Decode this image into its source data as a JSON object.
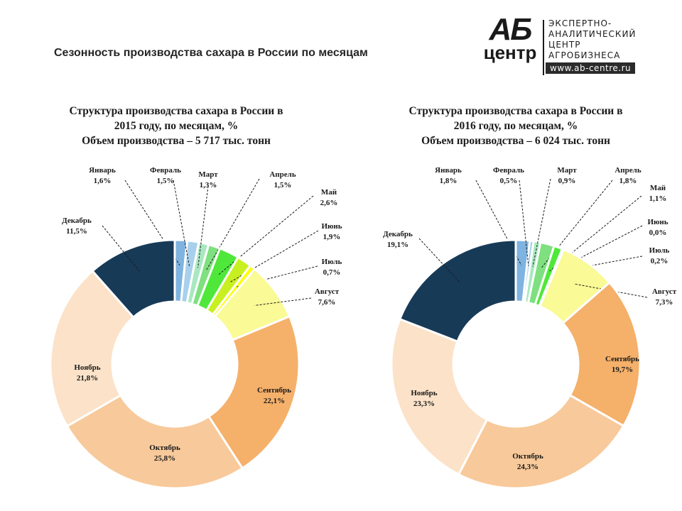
{
  "page": {
    "title": "Сезонность производства сахара в России по месяцам"
  },
  "logo": {
    "mark_top": "АБ",
    "mark_bottom": "центр",
    "lines": [
      "ЭКСПЕРТНО-",
      "АНАЛИТИЧЕСКИЙ",
      "ЦЕНТР",
      "АГРОБИЗНЕСА"
    ],
    "url": "www.ab-centre.ru"
  },
  "colors": {
    "Январь": "#7fb3e0",
    "Февраль": "#a8d0ec",
    "Март": "#a8e8c0",
    "Апрель": "#7ee07e",
    "Май": "#4fe83a",
    "Июнь": "#c8f020",
    "Июль": "#ffff00",
    "Август": "#fafa96",
    "Сентябрь": "#f5b06a",
    "Октябрь": "#f8c99a",
    "Ноябрь": "#fbe2c8",
    "Декабрь": "#173a57"
  },
  "chart_data": [
    {
      "type": "pie",
      "variant": "donut",
      "title_lines": [
        "Структура производства сахара в России в",
        "2015 году,  по месяцам, %",
        "Объем производства – 5 717 тыс. тонн"
      ],
      "categories": [
        "Январь",
        "Февраль",
        "Март",
        "Апрель",
        "Май",
        "Июнь",
        "Июль",
        "Август",
        "Сентябрь",
        "Октябрь",
        "Ноябрь",
        "Декабрь"
      ],
      "values": [
        1.6,
        1.5,
        1.3,
        1.5,
        2.6,
        1.9,
        0.7,
        7.6,
        22.1,
        25.8,
        21.8,
        11.5
      ],
      "value_labels": [
        "1,6%",
        "1,5%",
        "1,3%",
        "1,5%",
        "2,6%",
        "1,9%",
        "0,7%",
        "7,6%",
        "22,1%",
        "25,8%",
        "21,8%",
        "11,5%"
      ],
      "unit": "%"
    },
    {
      "type": "pie",
      "variant": "donut",
      "title_lines": [
        "Структура производства сахара в России в",
        "2016 году,  по месяцам, %",
        "Объем производства – 6 024 тыс. тонн"
      ],
      "categories": [
        "Январь",
        "Февраль",
        "Март",
        "Апрель",
        "Май",
        "Июнь",
        "Июль",
        "Август",
        "Сентябрь",
        "Октябрь",
        "Ноябрь",
        "Декабрь"
      ],
      "values": [
        1.8,
        0.5,
        0.9,
        1.8,
        1.1,
        0.0,
        0.2,
        7.3,
        19.7,
        24.3,
        23.3,
        19.1
      ],
      "value_labels": [
        "1,8%",
        "0,5%",
        "0,9%",
        "1,8%",
        "1,1%",
        "0,0%",
        "0,2%",
        "7,3%",
        "19,7%",
        "24,3%",
        "23,3%",
        "19,1%"
      ],
      "unit": "%"
    }
  ]
}
